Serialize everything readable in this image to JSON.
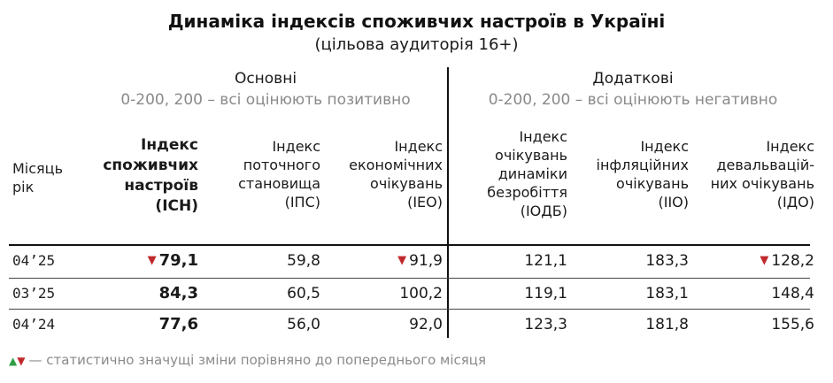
{
  "title": "Динаміка індексів споживчих настроїв в Україні",
  "subtitle": "(цільова аудиторія 16+)",
  "groups": {
    "main": {
      "name": "Основні",
      "range": "0-200, 200 – всі оцінюють позитивно"
    },
    "extra": {
      "name": "Додаткові",
      "range": "0-200, 200 – всі оцінюють негативно"
    }
  },
  "columns": {
    "month": [
      "Місяць",
      "рік"
    ],
    "isn": [
      "Індекс",
      "споживчих",
      "настроїв",
      "(ІСН)"
    ],
    "ips": [
      "Індекс",
      "поточного",
      "становища",
      "(ІПС)"
    ],
    "ieo": [
      "Індекс",
      "економічних",
      "очікувань",
      "(ІЕО)"
    ],
    "iodb": [
      "Індекс",
      "очікувань",
      "динаміки",
      "безробіття",
      "(ІОДБ)"
    ],
    "iio": [
      "Індекс",
      "інфляційних",
      "очікувань",
      "(ІІО)"
    ],
    "ido": [
      "Індекс",
      "девальвацій-",
      "них очікувань",
      "(ІДО)"
    ]
  },
  "rows": [
    {
      "month": "04’25",
      "isn": "79,1",
      "ips": "59,8",
      "ieo": "91,9",
      "iodb": "121,1",
      "iio": "183,3",
      "ido": "128,2"
    },
    {
      "month": "03’25",
      "isn": "84,3",
      "ips": "60,5",
      "ieo": "100,2",
      "iodb": "119,1",
      "iio": "183,1",
      "ido": "148,4"
    },
    {
      "month": "04’24",
      "isn": "77,6",
      "ips": "56,0",
      "ieo": "92,0",
      "iodb": "123,3",
      "iio": "181,8",
      "ido": "155,6"
    }
  ],
  "markers": {
    "down_symbol": "▼",
    "up_symbol": "▲",
    "down_color": "#c0282b",
    "up_color": "#2e9e45"
  },
  "footnote": "— статистично значущі зміни порівняно до попереднього місяця"
}
